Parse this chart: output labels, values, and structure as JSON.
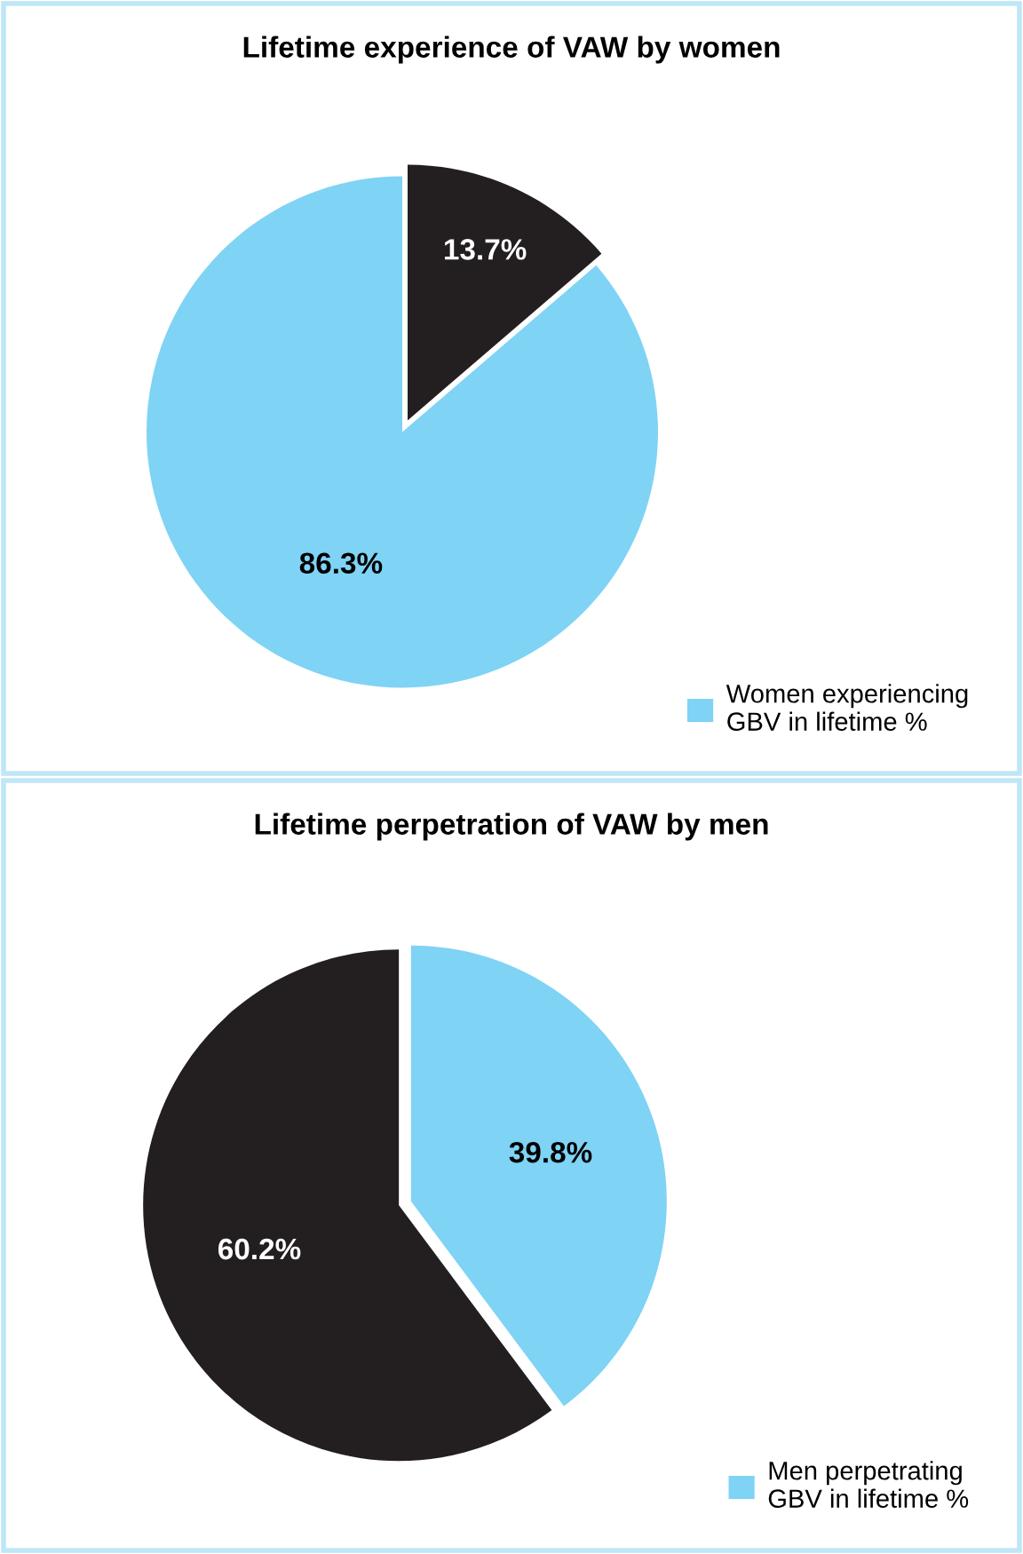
{
  "chart_data": [
    {
      "type": "pie",
      "title": "Lifetime experience of VAW by women",
      "categories": [
        null,
        "Women experiencing GBV in lifetime %"
      ],
      "values": [
        13.7,
        86.3
      ],
      "colors": [
        "#231f20",
        "#7fd3f5"
      ],
      "value_labels": [
        "13.7%",
        "86.3%"
      ],
      "legend": "bottom right"
    },
    {
      "type": "pie",
      "title": "Lifetime perpetration of VAW by men",
      "categories": [
        "Men perpetrating GBV in lifetime %",
        null
      ],
      "values": [
        39.8,
        60.2
      ],
      "colors": [
        "#7fd3f5",
        "#231f20"
      ],
      "value_labels": [
        "39.8%",
        "60.2%"
      ],
      "legend": "bottom right"
    }
  ]
}
